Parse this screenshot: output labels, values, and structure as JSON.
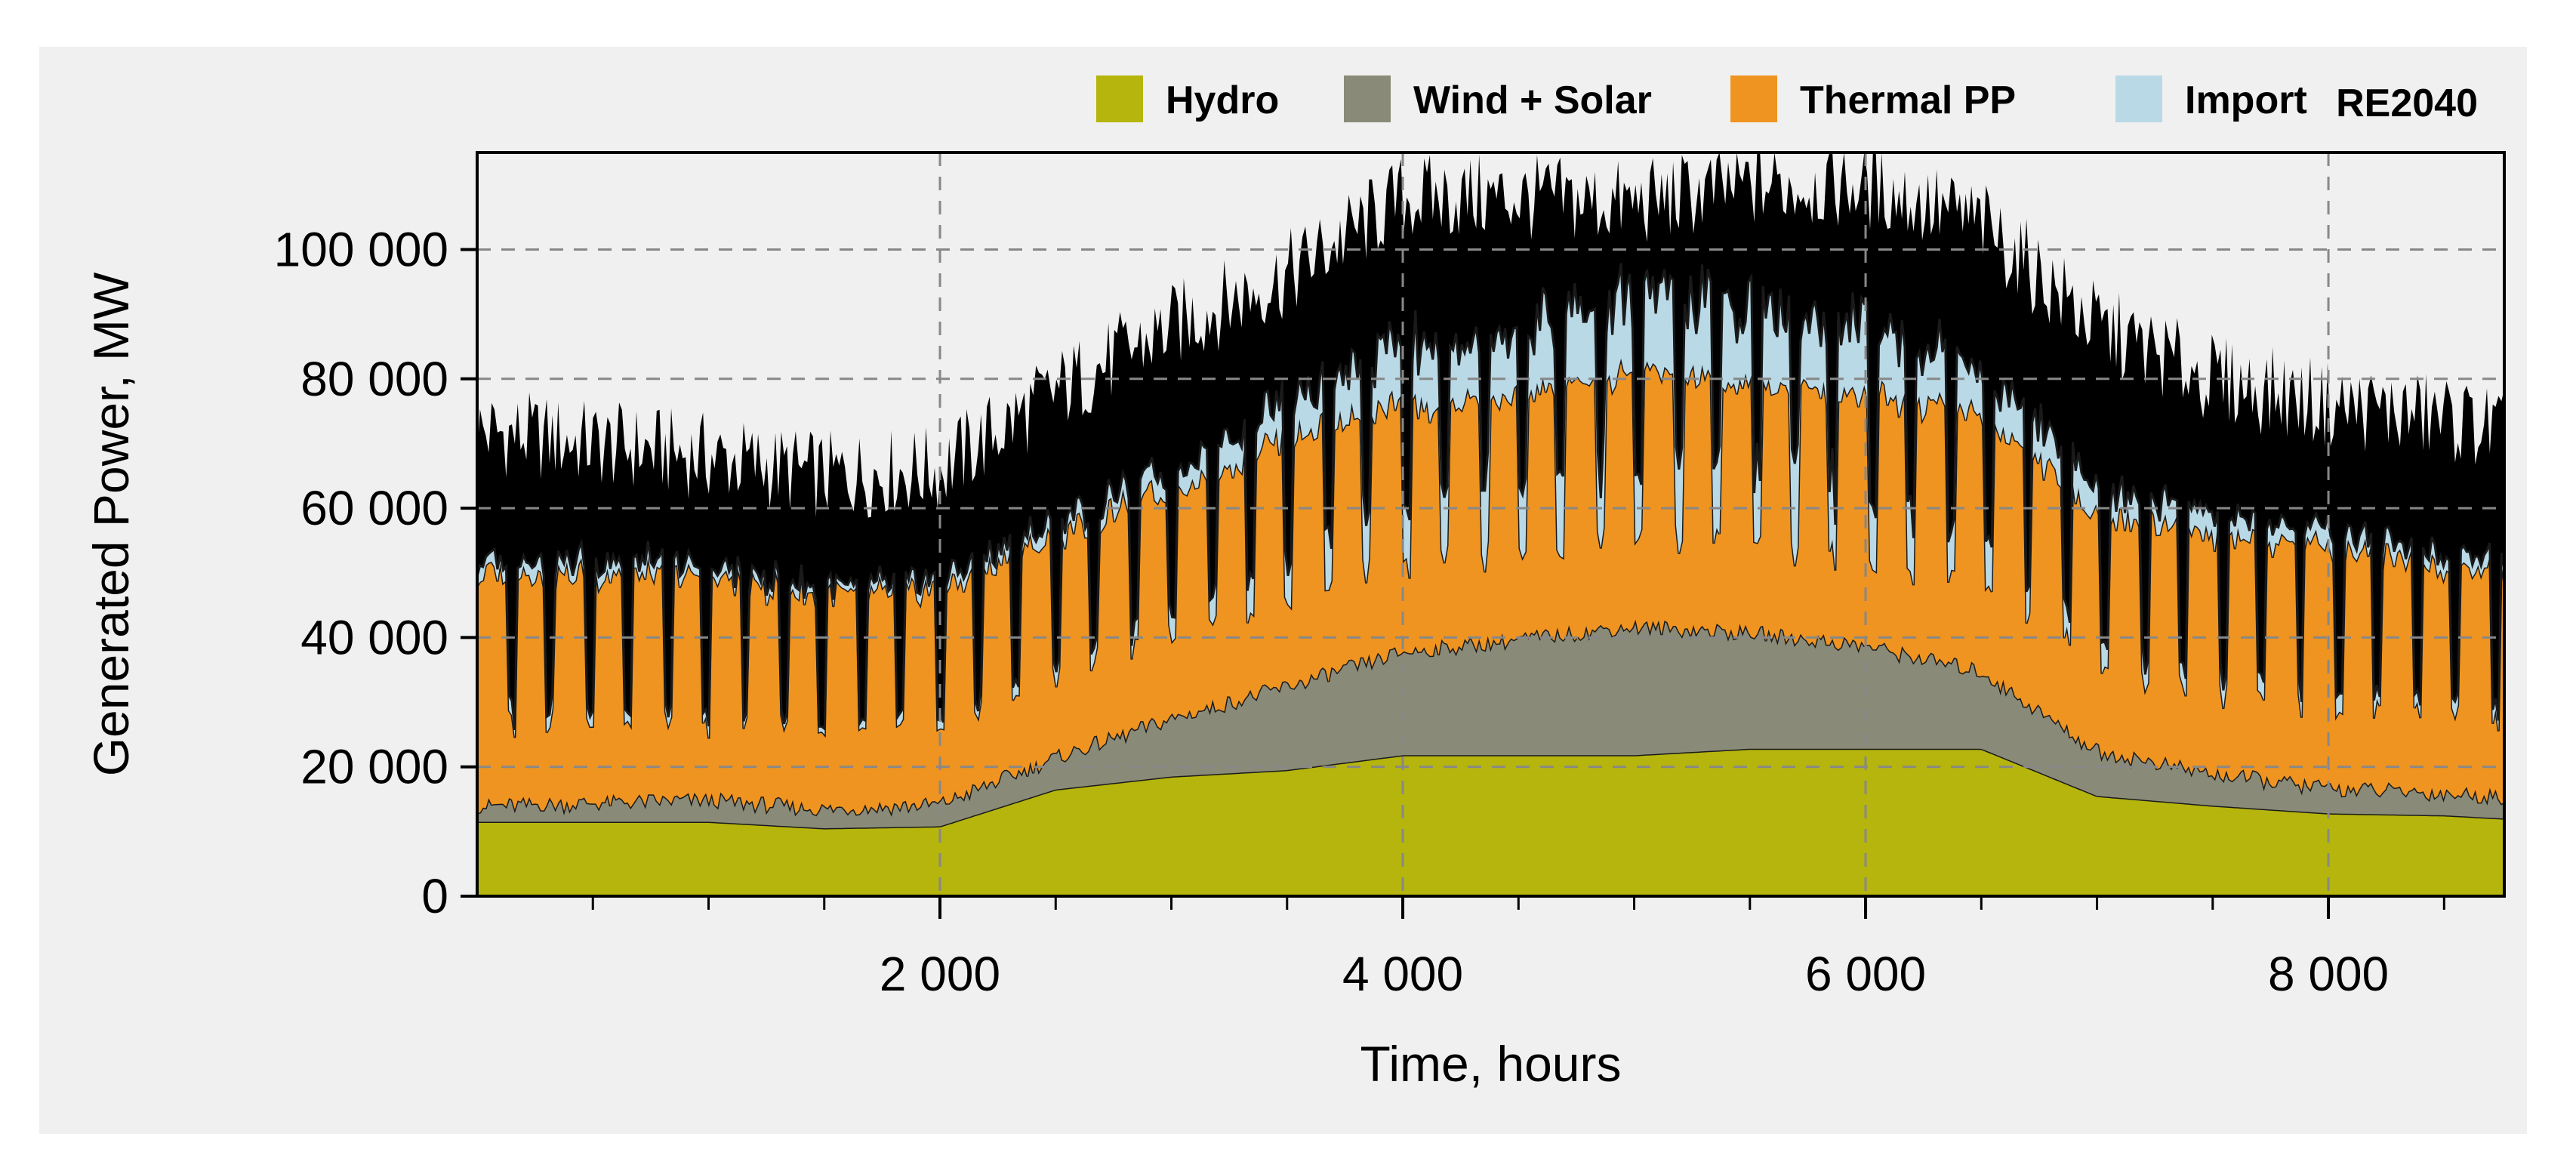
{
  "chart_data": {
    "type": "area",
    "stacked": true,
    "scenario_label": "RE2040",
    "xlabel": "Time, hours",
    "ylabel": "Generated Power, MW",
    "xlim": [
      0,
      8760
    ],
    "ylim": [
      0,
      115000
    ],
    "x_ticks": [
      2000,
      4000,
      6000,
      8000
    ],
    "x_tick_labels": [
      "2 000",
      "4 000",
      "6 000",
      "8 000"
    ],
    "y_ticks": [
      0,
      20000,
      40000,
      60000,
      80000,
      100000
    ],
    "y_tick_labels": [
      "0",
      "20 000",
      "40 000",
      "60 000",
      "80 000",
      "100 000"
    ],
    "grid": true,
    "legend_position": "top",
    "x": [
      0,
      500,
      1000,
      1500,
      2000,
      2500,
      3000,
      3500,
      4000,
      4500,
      5000,
      5500,
      6000,
      6500,
      7000,
      7500,
      8000,
      8500,
      8760
    ],
    "series": [
      {
        "name": "Hydro",
        "color": "#b5b50d",
        "values": [
          11500,
          11500,
          11500,
          10500,
          10800,
          16500,
          18500,
          19500,
          21800,
          21800,
          21800,
          22800,
          22800,
          22800,
          15500,
          14000,
          12800,
          12500,
          12000
        ]
      },
      {
        "name": "Wind + Solar",
        "color": "#8a8a78",
        "values": [
          2500,
          3000,
          3500,
          3000,
          3500,
          5000,
          9000,
          13000,
          16000,
          18000,
          20000,
          18000,
          16000,
          12000,
          7000,
          5000,
          4000,
          3500,
          3500
        ]
      },
      {
        "name": "Thermal PP",
        "color": "#ef9420",
        "values": [
          36000,
          35500,
          34000,
          33500,
          33000,
          34500,
          35500,
          38500,
          38000,
          37500,
          39500,
          38500,
          39000,
          40000,
          37000,
          37000,
          37000,
          35500,
          35500
        ]
      },
      {
        "name": "Import",
        "color": "#b9d9e6",
        "values": [
          2000,
          2000,
          1500,
          1000,
          1500,
          2000,
          3000,
          6000,
          9000,
          11000,
          11000,
          12000,
          11000,
          7000,
          4000,
          3000,
          2500,
          2000,
          2000
        ]
      }
    ],
    "peak_envelope": {
      "color": "#000000",
      "values": [
        72000,
        70000,
        68000,
        65000,
        66000,
        78000,
        88000,
        96000,
        108000,
        108000,
        107000,
        110000,
        110000,
        104000,
        88000,
        80000,
        76000,
        74000,
        72000
      ]
    }
  }
}
